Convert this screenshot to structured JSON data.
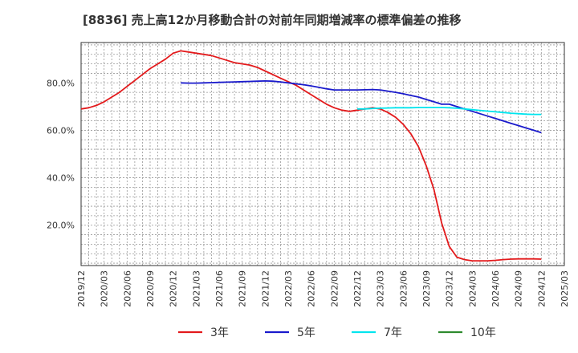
{
  "chart_data": {
    "type": "line",
    "title": "[8836]  売上高12か月移動合計の対前年同期増減率の標準偏差の推移",
    "xlabel": "",
    "ylabel": "",
    "x_ticks": [
      "2019/12",
      "2020/03",
      "2020/06",
      "2020/09",
      "2020/12",
      "2021/03",
      "2021/06",
      "2021/09",
      "2021/12",
      "2022/03",
      "2022/06",
      "2022/09",
      "2022/12",
      "2023/03",
      "2023/06",
      "2023/09",
      "2023/12",
      "2024/03",
      "2024/06",
      "2024/09",
      "2024/12",
      "2025/03"
    ],
    "y_ticks": [
      {
        "value": 20,
        "label": "20.0%"
      },
      {
        "value": 40,
        "label": "40.0%"
      },
      {
        "value": 60,
        "label": "60.0%"
      },
      {
        "value": 80,
        "label": "80.0%"
      }
    ],
    "xlim": [
      "2019/12",
      "2025/03"
    ],
    "ylim": [
      3,
      97
    ],
    "grid": true,
    "legend_position": "bottom",
    "series": [
      {
        "name": "3年",
        "color": "#e31a1c",
        "points": [
          [
            "2019/12",
            69.0
          ],
          [
            "2020/01",
            69.5
          ],
          [
            "2020/02",
            70.5
          ],
          [
            "2020/03",
            72.0
          ],
          [
            "2020/04",
            74.0
          ],
          [
            "2020/05",
            76.0
          ],
          [
            "2020/06",
            78.5
          ],
          [
            "2020/07",
            81.0
          ],
          [
            "2020/08",
            83.5
          ],
          [
            "2020/09",
            86.0
          ],
          [
            "2020/10",
            88.0
          ],
          [
            "2020/11",
            90.0
          ],
          [
            "2020/12",
            92.5
          ],
          [
            "2021/01",
            93.5
          ],
          [
            "2021/02",
            93.0
          ],
          [
            "2021/03",
            92.5
          ],
          [
            "2021/04",
            92.0
          ],
          [
            "2021/05",
            91.5
          ],
          [
            "2021/06",
            90.5
          ],
          [
            "2021/07",
            89.5
          ],
          [
            "2021/08",
            88.5
          ],
          [
            "2021/09",
            88.0
          ],
          [
            "2021/10",
            87.5
          ],
          [
            "2021/11",
            86.5
          ],
          [
            "2021/12",
            85.0
          ],
          [
            "2022/01",
            83.5
          ],
          [
            "2022/02",
            82.0
          ],
          [
            "2022/03",
            80.5
          ],
          [
            "2022/04",
            79.0
          ],
          [
            "2022/05",
            77.0
          ],
          [
            "2022/06",
            75.0
          ],
          [
            "2022/07",
            73.0
          ],
          [
            "2022/08",
            71.0
          ],
          [
            "2022/09",
            69.5
          ],
          [
            "2022/10",
            68.5
          ],
          [
            "2022/11",
            68.0
          ],
          [
            "2022/12",
            68.5
          ],
          [
            "2023/01",
            69.0
          ],
          [
            "2023/02",
            69.5
          ],
          [
            "2023/03",
            69.0
          ],
          [
            "2023/04",
            67.5
          ],
          [
            "2023/05",
            65.5
          ],
          [
            "2023/06",
            62.5
          ],
          [
            "2023/07",
            58.5
          ],
          [
            "2023/08",
            53.0
          ],
          [
            "2023/09",
            45.0
          ],
          [
            "2023/10",
            35.0
          ],
          [
            "2023/11",
            21.0
          ],
          [
            "2023/12",
            11.0
          ],
          [
            "2024/01",
            6.5
          ],
          [
            "2024/02",
            5.5
          ],
          [
            "2024/03",
            5.0
          ],
          [
            "2024/04",
            5.0
          ],
          [
            "2024/05",
            5.0
          ],
          [
            "2024/06",
            5.2
          ],
          [
            "2024/07",
            5.5
          ],
          [
            "2024/08",
            5.7
          ],
          [
            "2024/09",
            5.8
          ],
          [
            "2024/10",
            5.8
          ],
          [
            "2024/11",
            5.8
          ],
          [
            "2024/12",
            5.7
          ]
        ]
      },
      {
        "name": "5年",
        "color": "#1a1acc",
        "points": [
          [
            "2021/01",
            80.0
          ],
          [
            "2021/02",
            79.9
          ],
          [
            "2021/03",
            79.9
          ],
          [
            "2021/04",
            80.0
          ],
          [
            "2021/05",
            80.1
          ],
          [
            "2021/06",
            80.2
          ],
          [
            "2021/07",
            80.3
          ],
          [
            "2021/08",
            80.4
          ],
          [
            "2021/09",
            80.5
          ],
          [
            "2021/10",
            80.6
          ],
          [
            "2021/11",
            80.7
          ],
          [
            "2021/12",
            80.8
          ],
          [
            "2022/01",
            80.7
          ],
          [
            "2022/02",
            80.4
          ],
          [
            "2022/03",
            80.0
          ],
          [
            "2022/04",
            79.6
          ],
          [
            "2022/05",
            79.2
          ],
          [
            "2022/06",
            78.7
          ],
          [
            "2022/07",
            78.1
          ],
          [
            "2022/08",
            77.5
          ],
          [
            "2022/09",
            77.0
          ],
          [
            "2022/10",
            77.0
          ],
          [
            "2022/11",
            77.0
          ],
          [
            "2022/12",
            77.0
          ],
          [
            "2023/01",
            77.1
          ],
          [
            "2023/02",
            77.2
          ],
          [
            "2023/03",
            77.0
          ],
          [
            "2023/04",
            76.5
          ],
          [
            "2023/05",
            76.0
          ],
          [
            "2023/06",
            75.4
          ],
          [
            "2023/07",
            74.7
          ],
          [
            "2023/08",
            74.0
          ],
          [
            "2023/09",
            73.0
          ],
          [
            "2023/10",
            72.0
          ],
          [
            "2023/11",
            71.0
          ],
          [
            "2023/12",
            71.0
          ],
          [
            "2024/01",
            70.0
          ],
          [
            "2024/02",
            69.0
          ],
          [
            "2024/03",
            68.0
          ],
          [
            "2024/04",
            67.0
          ],
          [
            "2024/05",
            66.0
          ],
          [
            "2024/06",
            65.0
          ],
          [
            "2024/07",
            64.0
          ],
          [
            "2024/08",
            63.0
          ],
          [
            "2024/09",
            62.0
          ],
          [
            "2024/10",
            61.0
          ],
          [
            "2024/11",
            60.0
          ],
          [
            "2024/12",
            59.0
          ]
        ]
      },
      {
        "name": "7年",
        "color": "#00e5ee",
        "points": [
          [
            "2022/12",
            69.0
          ],
          [
            "2023/01",
            69.0
          ],
          [
            "2023/02",
            69.2
          ],
          [
            "2023/03",
            69.3
          ],
          [
            "2023/04",
            69.4
          ],
          [
            "2023/05",
            69.5
          ],
          [
            "2023/06",
            69.5
          ],
          [
            "2023/07",
            69.5
          ],
          [
            "2023/08",
            69.6
          ],
          [
            "2023/09",
            69.6
          ],
          [
            "2023/10",
            69.6
          ],
          [
            "2023/11",
            69.6
          ],
          [
            "2023/12",
            69.5
          ],
          [
            "2024/01",
            69.3
          ],
          [
            "2024/02",
            69.0
          ],
          [
            "2024/03",
            68.7
          ],
          [
            "2024/04",
            68.4
          ],
          [
            "2024/05",
            68.1
          ],
          [
            "2024/06",
            67.8
          ],
          [
            "2024/07",
            67.5
          ],
          [
            "2024/08",
            67.2
          ],
          [
            "2024/09",
            67.0
          ],
          [
            "2024/10",
            66.8
          ],
          [
            "2024/11",
            66.7
          ],
          [
            "2024/12",
            66.7
          ]
        ]
      },
      {
        "name": "10年",
        "color": "#2e8b2e",
        "points": []
      }
    ]
  }
}
